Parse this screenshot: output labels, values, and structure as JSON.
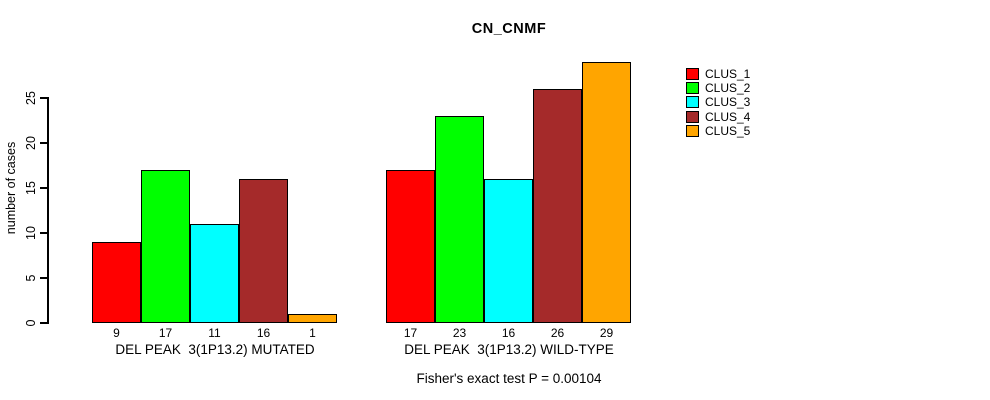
{
  "title": "CN_CNMF",
  "footnote": "Fisher's exact test P = 0.00104",
  "chart_data": {
    "type": "bar",
    "title": "CN_CNMF",
    "xlabel": "",
    "ylabel": "number of cases",
    "yticks": [
      0,
      5,
      10,
      15,
      20,
      25
    ],
    "ylim": [
      0,
      29
    ],
    "grid": false,
    "bar_borders_color": "#000000",
    "background_color": "#ffffff",
    "series_colors": [
      "#FF0000",
      "#00FF00",
      "#00FFFF",
      "#A52A2A",
      "#FFA500"
    ],
    "legend": {
      "position": "right",
      "entries": [
        {
          "label": "CLUS_1",
          "color": "#FF0000"
        },
        {
          "label": "CLUS_2",
          "color": "#00FF00"
        },
        {
          "label": "CLUS_3",
          "color": "#00FFFF"
        },
        {
          "label": "CLUS_4",
          "color": "#A52A2A"
        },
        {
          "label": "CLUS_5",
          "color": "#FFA500"
        }
      ]
    },
    "groups": [
      {
        "label": "DEL PEAK  3(1P13.2) MUTATED",
        "values": [
          9,
          17,
          11,
          16,
          1
        ]
      },
      {
        "label": "DEL PEAK  3(1P13.2) WILD-TYPE",
        "values": [
          17,
          23,
          16,
          26,
          29
        ]
      }
    ],
    "annotation": "Fisher's exact test P = 0.00104"
  }
}
